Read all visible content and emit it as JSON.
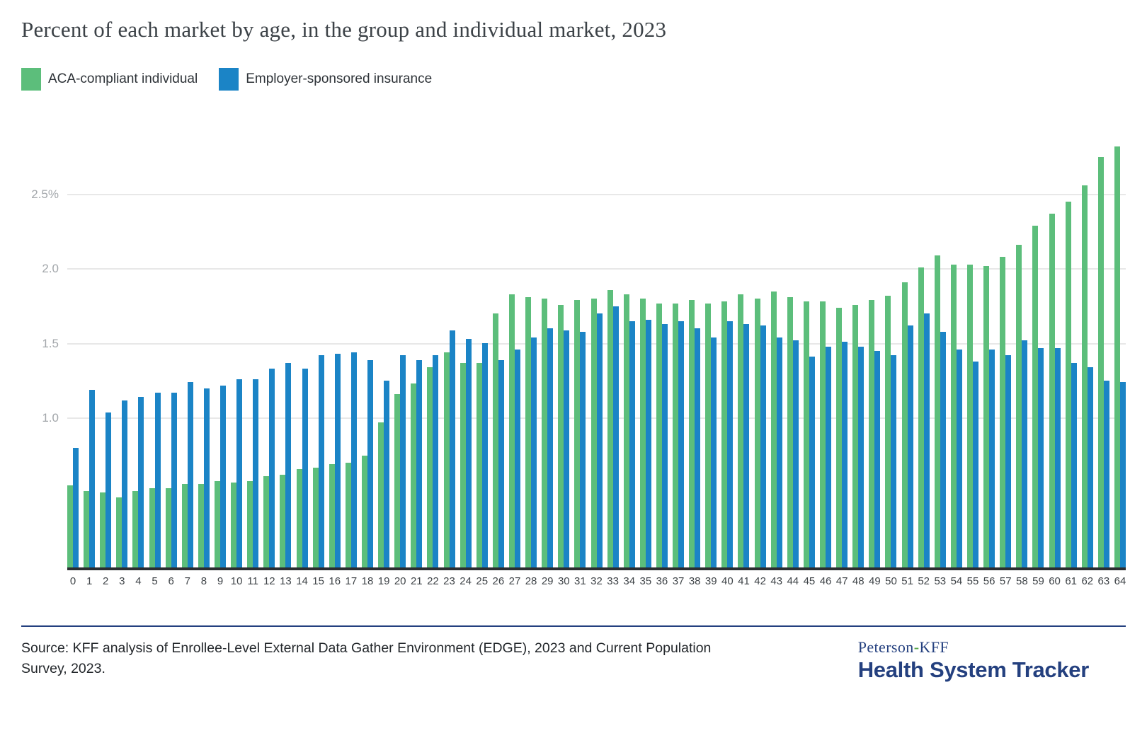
{
  "title": "Percent of each market by age, in the group and individual market, 2023",
  "legend": {
    "items": [
      {
        "label": "ACA-compliant individual",
        "color": "#5cbe7b"
      },
      {
        "label": "Employer-sponsored insurance",
        "color": "#1b84c6"
      }
    ]
  },
  "footer": {
    "source": "Source: KFF analysis of Enrollee-Level External Data Gather Environment (EDGE), 2023 and Current Population Survey, 2023.",
    "logo": {
      "left": "Peterson",
      "dash": "-",
      "right": "KFF",
      "line2": "Health System Tracker"
    }
  },
  "colors": {
    "aca_green": "#5cbe7b",
    "esi_blue": "#1b84c6",
    "gridline": "#e8e8e8",
    "axis_line": "#2b2e31",
    "navy": "#24407f",
    "logo_dash_green": "#55a546",
    "y_label_gray": "#a3a7ab",
    "x_label_gray": "#3f4448"
  },
  "chart_data": {
    "type": "bar",
    "title": "Percent of each market by age, in the group and individual market, 2023",
    "xlabel": "",
    "ylabel": "",
    "ylim": [
      0,
      3.0
    ],
    "grid": "horizontal",
    "legend_position": "top-left",
    "y_ticks": [
      {
        "value": 1.0,
        "label": "1.0"
      },
      {
        "value": 1.5,
        "label": "1.5"
      },
      {
        "value": 2.0,
        "label": "2.0"
      },
      {
        "value": 2.5,
        "label": "2.5%"
      }
    ],
    "categories": [
      "0",
      "1",
      "2",
      "3",
      "4",
      "5",
      "6",
      "7",
      "8",
      "9",
      "10",
      "11",
      "12",
      "13",
      "14",
      "15",
      "16",
      "17",
      "18",
      "19",
      "20",
      "21",
      "22",
      "23",
      "24",
      "25",
      "26",
      "27",
      "28",
      "29",
      "30",
      "31",
      "32",
      "33",
      "34",
      "35",
      "36",
      "37",
      "38",
      "39",
      "40",
      "41",
      "42",
      "43",
      "44",
      "45",
      "46",
      "47",
      "48",
      "49",
      "50",
      "51",
      "52",
      "53",
      "54",
      "55",
      "56",
      "57",
      "58",
      "59",
      "60",
      "61",
      "62",
      "63",
      "64"
    ],
    "series": [
      {
        "name": "ACA-compliant individual",
        "key": "aca",
        "color": "#5cbe7b",
        "values": [
          0.55,
          0.51,
          0.5,
          0.47,
          0.51,
          0.53,
          0.53,
          0.56,
          0.56,
          0.58,
          0.57,
          0.58,
          0.61,
          0.62,
          0.66,
          0.67,
          0.69,
          0.7,
          0.75,
          0.97,
          1.16,
          1.23,
          1.34,
          1.44,
          1.37,
          1.37,
          1.7,
          1.83,
          1.81,
          1.8,
          1.76,
          1.79,
          1.8,
          1.86,
          1.83,
          1.8,
          1.77,
          1.77,
          1.79,
          1.77,
          1.78,
          1.83,
          1.8,
          1.85,
          1.81,
          1.78,
          1.78,
          1.74,
          1.76,
          1.79,
          1.82,
          1.91,
          2.01,
          2.09,
          2.03,
          2.03,
          2.02,
          2.08,
          2.16,
          2.29,
          2.37,
          2.45,
          2.56,
          2.75,
          2.82
        ]
      },
      {
        "name": "Employer-sponsored insurance",
        "key": "esi",
        "color": "#1b84c6",
        "values": [
          0.8,
          1.19,
          1.04,
          1.12,
          1.14,
          1.17,
          1.17,
          1.24,
          1.2,
          1.22,
          1.26,
          1.26,
          1.33,
          1.37,
          1.33,
          1.42,
          1.43,
          1.44,
          1.39,
          1.25,
          1.42,
          1.39,
          1.42,
          1.59,
          1.53,
          1.5,
          1.39,
          1.46,
          1.54,
          1.6,
          1.59,
          1.58,
          1.7,
          1.75,
          1.65,
          1.66,
          1.63,
          1.65,
          1.6,
          1.54,
          1.65,
          1.63,
          1.62,
          1.54,
          1.52,
          1.41,
          1.48,
          1.51,
          1.48,
          1.45,
          1.42,
          1.62,
          1.7,
          1.58,
          1.46,
          1.38,
          1.46,
          1.42,
          1.52,
          1.47,
          1.47,
          1.37,
          1.34,
          1.25,
          1.24
        ]
      }
    ]
  }
}
